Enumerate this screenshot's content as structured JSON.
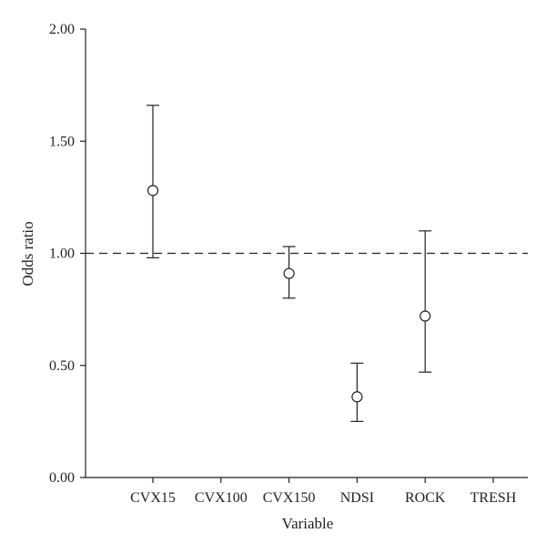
{
  "chart_data": {
    "type": "scatter",
    "title": "",
    "xlabel": "Variable",
    "ylabel": "Odds ratio",
    "categories": [
      "CVX15",
      "CVX100",
      "CVX150",
      "NDSI",
      "ROCK",
      "TRESH"
    ],
    "y_ticks": [
      "0.00",
      "0.50",
      "1.00",
      "1.50",
      "2.00"
    ],
    "ylim": [
      0,
      2
    ],
    "reference_line": {
      "y": 1.0,
      "style": "dashed"
    },
    "grid": false,
    "series": [
      {
        "points": [
          {
            "category": "CVX15",
            "value": 1.28,
            "lower": 0.98,
            "upper": 1.66
          },
          {
            "category": "CVX150",
            "value": 0.91,
            "lower": 0.8,
            "upper": 1.03
          },
          {
            "category": "NDSI",
            "value": 0.36,
            "lower": 0.25,
            "upper": 0.51
          },
          {
            "category": "ROCK",
            "value": 0.72,
            "lower": 0.47,
            "upper": 1.1
          }
        ]
      }
    ],
    "colors": {
      "axis": "#222222",
      "marker_fill": "#ffffff",
      "marker_stroke": "#222222"
    }
  }
}
